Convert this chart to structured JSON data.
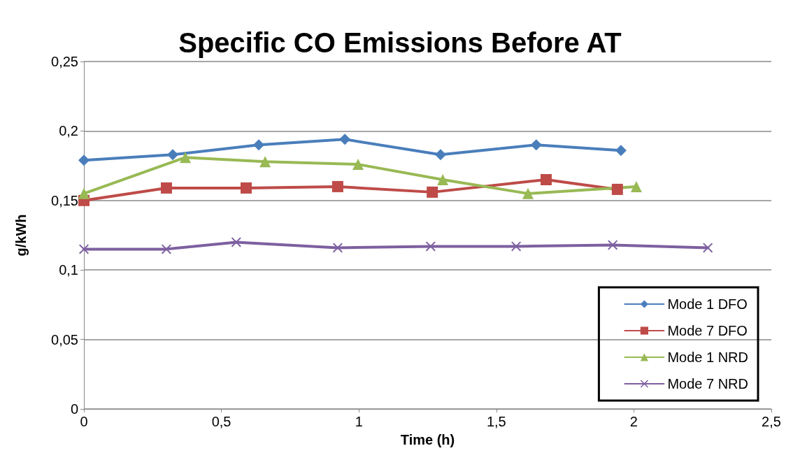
{
  "chart_data": {
    "type": "line",
    "title": "Specific CO Emissions Before AT",
    "xlabel": "Time (h)",
    "ylabel": "g/kWh",
    "xlim": [
      0,
      2.5
    ],
    "xticks": [
      0,
      {
        "value": 0.5,
        "label": "0,5"
      },
      1,
      {
        "value": 1.5,
        "label": "1,5"
      },
      2,
      {
        "value": 2.5,
        "label": "2,5"
      }
    ],
    "ylim": [
      0,
      0.25
    ],
    "yticks": [
      0,
      {
        "value": 0.05,
        "label": "0,05"
      },
      {
        "value": 0.1,
        "label": "0,1"
      },
      {
        "value": 0.15,
        "label": "0,15"
      },
      {
        "value": 0.2,
        "label": "0,2"
      },
      {
        "value": 0.25,
        "label": "0,25"
      }
    ],
    "grid": "y",
    "legend": "bottom right",
    "series": [
      {
        "name": "Mode 1 DFO",
        "color": "#4a7ebb",
        "marker": "diamond",
        "x": [
          0,
          0.323,
          0.636,
          0.949,
          1.297,
          1.645,
          1.953
        ],
        "values": [
          0.179,
          0.183,
          0.19,
          0.194,
          0.183,
          0.19,
          0.186
        ]
      },
      {
        "name": "Mode 7 DFO",
        "color": "#be4b48",
        "marker": "square",
        "x": [
          0,
          0.3,
          0.59,
          0.923,
          1.267,
          1.681,
          1.94
        ],
        "values": [
          0.15,
          0.159,
          0.159,
          0.16,
          0.156,
          0.165,
          0.158
        ]
      },
      {
        "name": "Mode 1 NRD",
        "color": "#98b954",
        "marker": "triangle",
        "x": [
          0,
          0.369,
          0.659,
          0.997,
          1.305,
          1.615,
          2.009
        ],
        "values": [
          0.155,
          0.181,
          0.178,
          0.176,
          0.165,
          0.155,
          0.16
        ]
      },
      {
        "name": "Mode 7 NRD",
        "color": "#7d60a0",
        "marker": "cross",
        "x": [
          0,
          0.3,
          0.554,
          0.923,
          1.261,
          1.572,
          1.923,
          2.269
        ],
        "values": [
          0.115,
          0.115,
          0.12,
          0.116,
          0.117,
          0.117,
          0.118,
          0.116
        ]
      }
    ]
  }
}
